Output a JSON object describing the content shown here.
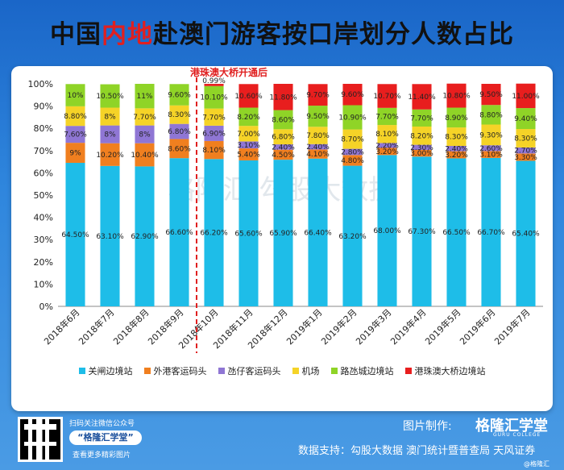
{
  "title": {
    "part1": "中国",
    "highlight": "内地",
    "part2": "赴澳门游客按口岸划分人数占比"
  },
  "chart_data": {
    "type": "bar",
    "stacked": true,
    "categories": [
      "2018年6月",
      "2018年7月",
      "2018年8月",
      "2018年9月",
      "2018年10月",
      "2018年11月",
      "2018年12月",
      "2019年1月",
      "2019年2月",
      "2019年3月",
      "2019年4月",
      "2019年5月",
      "2019年6月",
      "2019年7月"
    ],
    "series": [
      {
        "name": "关闸边境站",
        "color": "#1ebde8",
        "values": [
          64.5,
          63.1,
          62.9,
          66.6,
          66.2,
          65.6,
          65.9,
          66.4,
          63.2,
          68.0,
          67.3,
          66.5,
          66.7,
          65.4
        ],
        "labels": [
          "64.50%",
          "63.10%",
          "62.90%",
          "66.60%",
          "66.20%",
          "65.60%",
          "65.90%",
          "66.40%",
          "63.20%",
          "68.00%",
          "67.30%",
          "66.50%",
          "66.70%",
          "65.40%"
        ]
      },
      {
        "name": "外港客运码头",
        "color": "#f07f1f",
        "values": [
          9,
          10.2,
          10.4,
          8.6,
          8.1,
          5.4,
          4.5,
          4.1,
          4.8,
          3.2,
          3.0,
          3.2,
          3.1,
          3.3
        ],
        "labels": [
          "9%",
          "10.20%",
          "10.40%",
          "8.60%",
          "8.10%",
          "5.40%",
          "4.50%",
          "4.10%",
          "4.80%",
          "3.20%",
          "3.00%",
          "3.20%",
          "3.10%",
          "3.30%"
        ]
      },
      {
        "name": "氹仔客运码头",
        "color": "#8f76d4",
        "values": [
          7.6,
          8,
          8,
          6.8,
          6.9,
          3.1,
          2.4,
          2.4,
          2.8,
          2.2,
          2.3,
          2.4,
          2.6,
          2.7
        ],
        "labels": [
          "7.60%",
          "8%",
          "8%",
          "6.80%",
          "6.90%",
          "3.10%",
          "2.40%",
          "2.40%",
          "2.80%",
          "2.20%",
          "2.30%",
          "2.40%",
          "2.60%",
          "2.70%"
        ]
      },
      {
        "name": "机场",
        "color": "#f5d327",
        "values": [
          8.8,
          8,
          7.7,
          8.3,
          7.7,
          7.0,
          6.8,
          7.8,
          8.7,
          8.1,
          8.2,
          8.3,
          9.3,
          8.3
        ],
        "labels": [
          "8.80%",
          "8%",
          "7.70%",
          "8.30%",
          "7.70%",
          "7.00%",
          "6.80%",
          "7.80%",
          "8.70%",
          "8.10%",
          "8.20%",
          "8.30%",
          "9.30%",
          "8.30%"
        ]
      },
      {
        "name": "路氹城边境站",
        "color": "#8fd427",
        "values": [
          10,
          10.5,
          11,
          9.6,
          10.1,
          8.2,
          8.6,
          9.5,
          10.9,
          7.7,
          7.7,
          8.9,
          8.8,
          9.4
        ],
        "labels": [
          "10%",
          "10.50%",
          "11%",
          "9.60%",
          "10.10%",
          "8.20%",
          "8.60%",
          "9.50%",
          "10.90%",
          "7.70%",
          "7.70%",
          "8.90%",
          "8.80%",
          "9.40%"
        ]
      },
      {
        "name": "港珠澳大桥边境站",
        "color": "#e81e1e",
        "values": [
          0,
          0,
          0,
          0,
          0.99,
          10.6,
          11.8,
          9.7,
          9.6,
          10.7,
          11.4,
          10.8,
          9.5,
          11.0
        ],
        "labels": [
          "",
          "",
          "",
          "",
          "0.99%",
          "10.60%",
          "11.80%",
          "9.70%",
          "9.60%",
          "10.70%",
          "11.40%",
          "10.80%",
          "9.50%",
          "11.00%"
        ]
      }
    ],
    "yticks": [
      "0%",
      "10%",
      "20%",
      "30%",
      "40%",
      "50%",
      "60%",
      "70%",
      "80%",
      "90%",
      "100%"
    ],
    "ylim": [
      0,
      100
    ],
    "annotation": {
      "text": "港珠澳大桥开通后",
      "after_category": "2018年9月"
    },
    "legend_position": "bottom",
    "watermark": "格隆汇  勾股大数据"
  },
  "footer": {
    "scan": "扫码关注微信公众号",
    "brand": "“格隆汇学堂”",
    "more": "查看更多精彩图片",
    "made_by": "图片制作:",
    "brand_logo": "格隆汇学堂",
    "brand_sub": "GURU COLLEGE",
    "source": "数据支持：勾股大数据 澳门统计暨普查局 天风证券",
    "weibo": "@格隆汇"
  }
}
